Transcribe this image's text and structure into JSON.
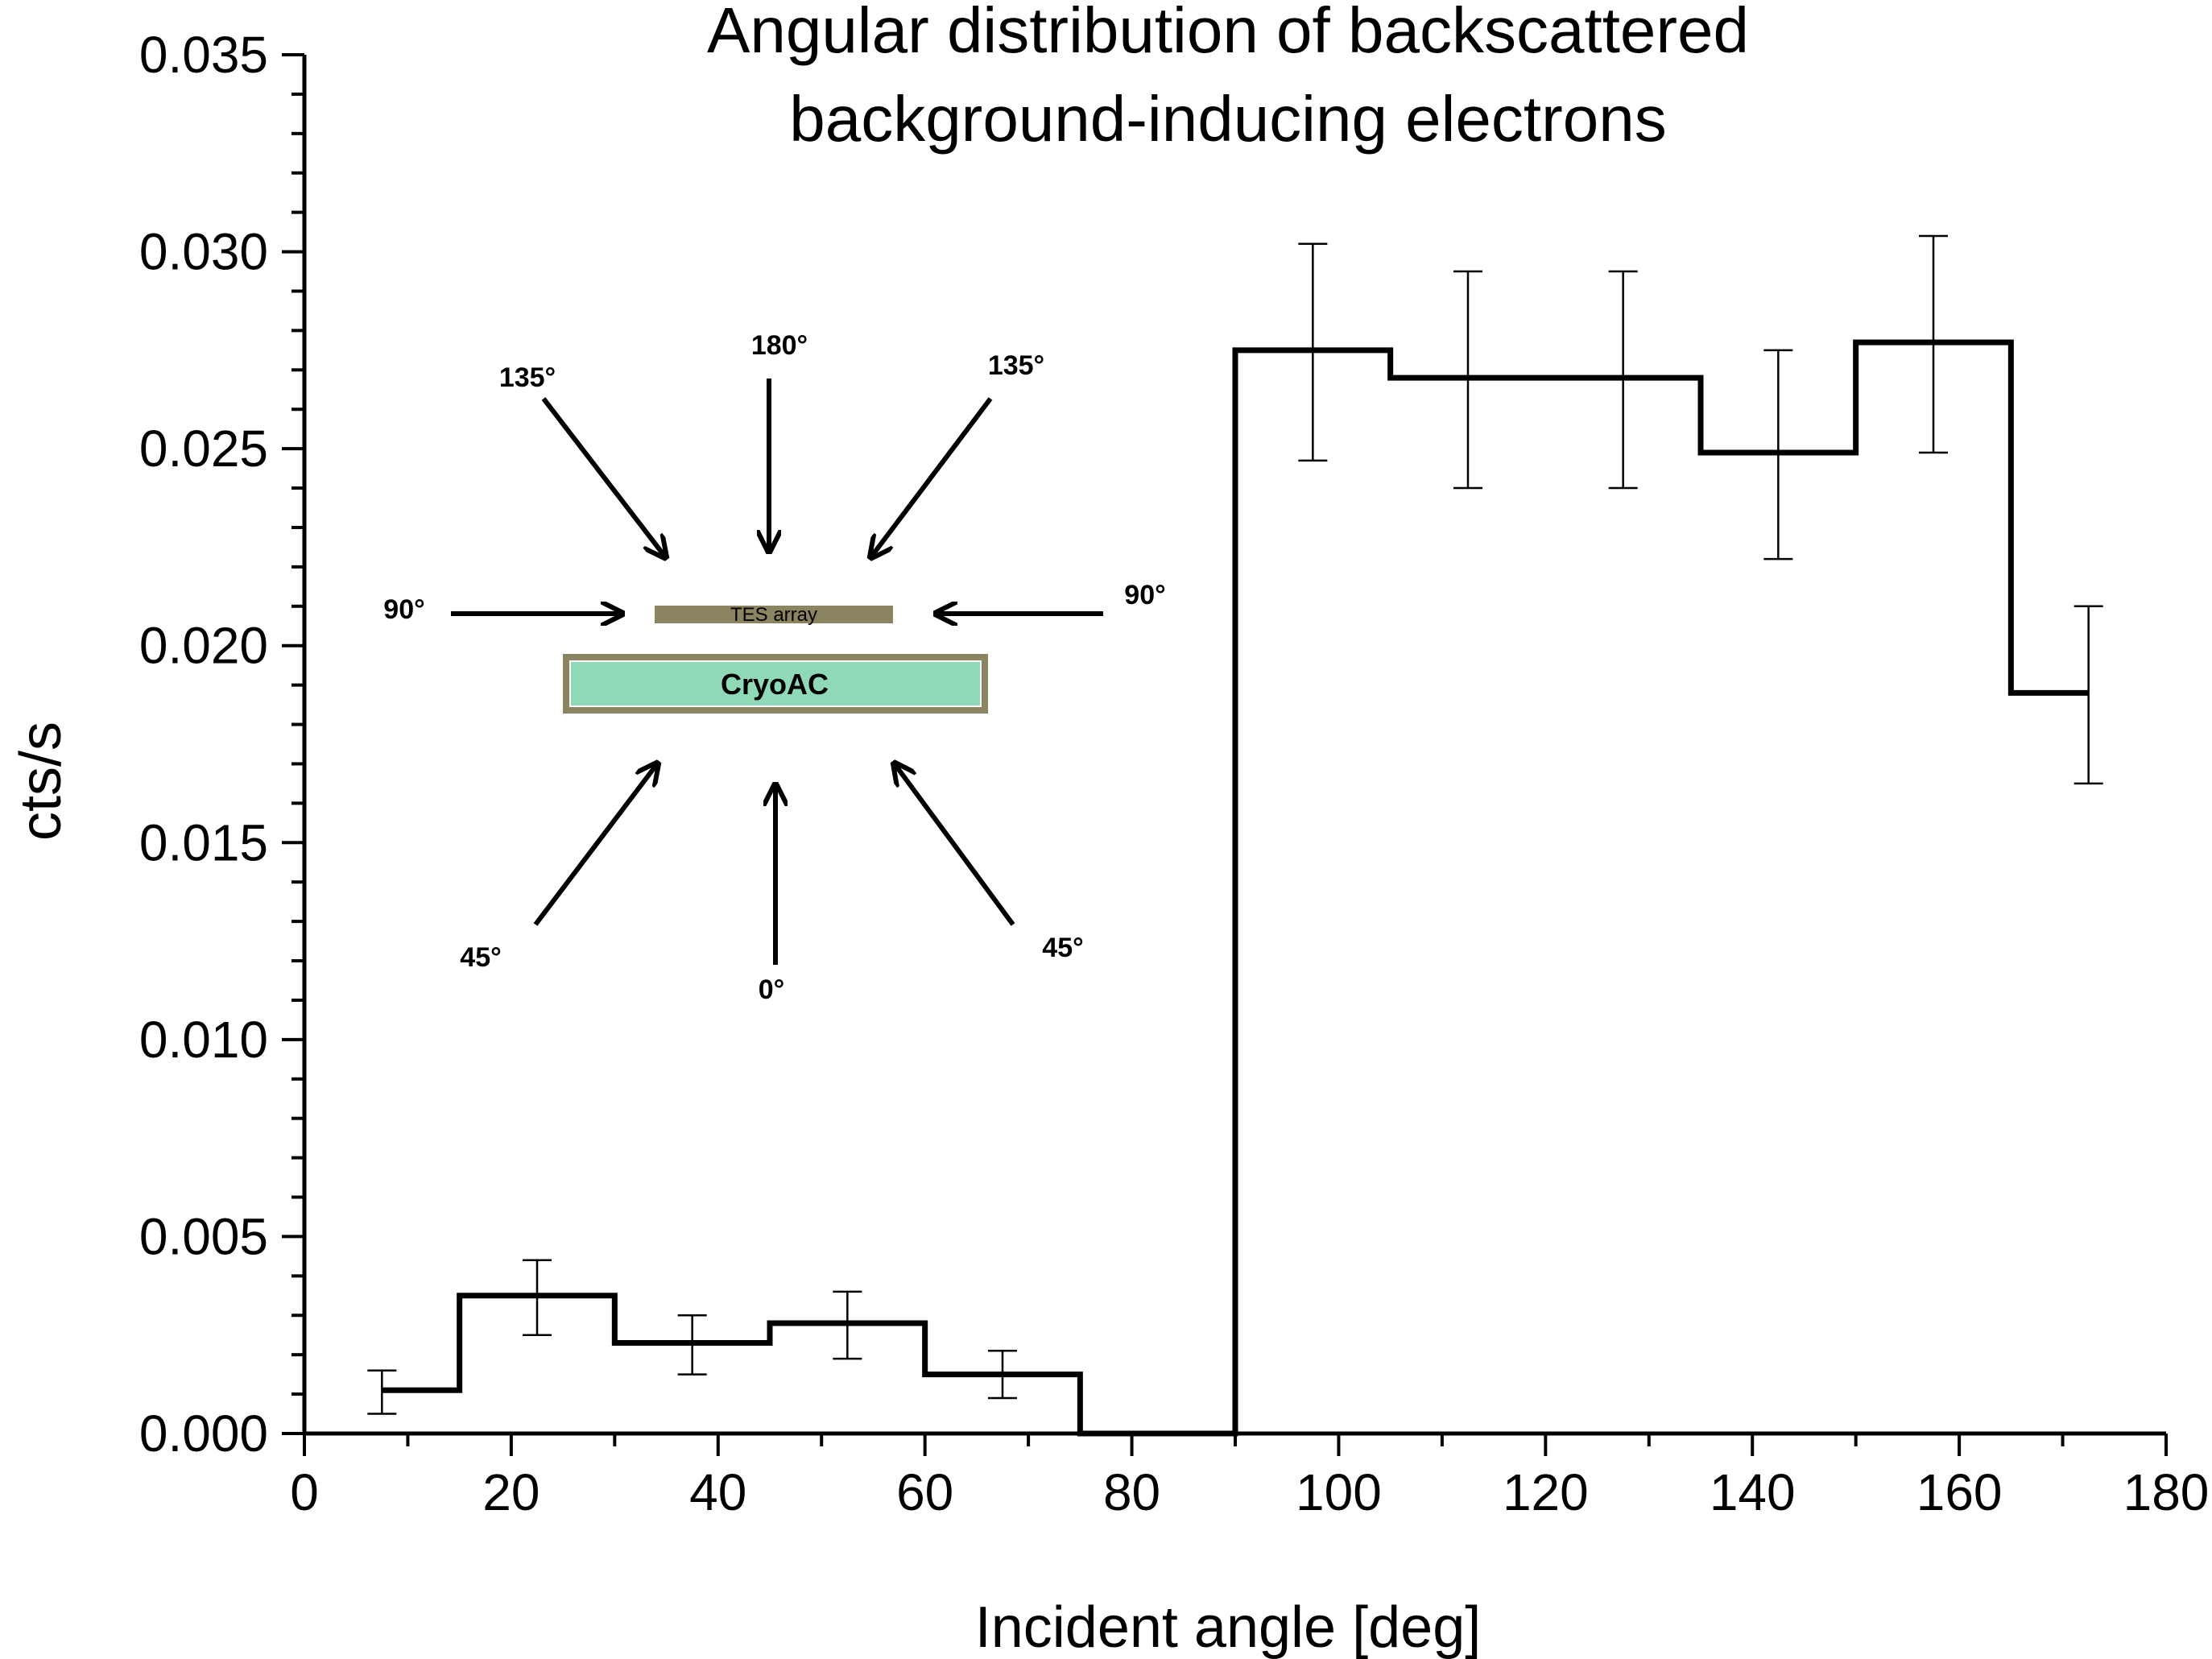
{
  "chart_data": {
    "type": "step",
    "title_lines": [
      "Angular distribution of backscattered",
      "background-inducing electrons"
    ],
    "xlabel": "Incident angle [deg]",
    "ylabel": "cts/s",
    "xlim": [
      0,
      180
    ],
    "ylim": [
      0,
      0.035
    ],
    "xticks": [
      "0",
      "20",
      "40",
      "60",
      "80",
      "100",
      "120",
      "140",
      "160",
      "180"
    ],
    "yticks": [
      "0.000",
      "0.005",
      "0.010",
      "0.015",
      "0.020",
      "0.025",
      "0.030",
      "0.035"
    ],
    "bin_width": 15,
    "bins": [
      {
        "x_start": 7.5,
        "x_end": 15,
        "y": 0.0011,
        "err_low": 0.0005,
        "err_high": 0.0016,
        "x_err": 7.5
      },
      {
        "x_start": 15,
        "x_end": 30,
        "y": 0.0035,
        "err_low": 0.0025,
        "err_high": 0.0044,
        "x_err": 22.5
      },
      {
        "x_start": 30,
        "x_end": 45,
        "y": 0.0023,
        "err_low": 0.0015,
        "err_high": 0.003,
        "x_err": 37.5
      },
      {
        "x_start": 45,
        "x_end": 60,
        "y": 0.0028,
        "err_low": 0.0019,
        "err_high": 0.0036,
        "x_err": 52.5
      },
      {
        "x_start": 60,
        "x_end": 75,
        "y": 0.0015,
        "err_low": 0.0009,
        "err_high": 0.0021,
        "x_err": 67.5
      },
      {
        "x_start": 75,
        "x_end": 90,
        "y": 0.0,
        "err_low": null,
        "err_high": null,
        "x_err": null
      },
      {
        "x_start": 90,
        "x_end": 105,
        "y": 0.0275,
        "err_low": 0.0247,
        "err_high": 0.0302,
        "x_err": 97.5
      },
      {
        "x_start": 105,
        "x_end": 120,
        "y": 0.0268,
        "err_low": 0.024,
        "err_high": 0.0295,
        "x_err": 112.5
      },
      {
        "x_start": 120,
        "x_end": 135,
        "y": 0.0268,
        "err_low": 0.024,
        "err_high": 0.0295,
        "x_err": 127.5
      },
      {
        "x_start": 135,
        "x_end": 150,
        "y": 0.0249,
        "err_low": 0.0222,
        "err_high": 0.0275,
        "x_err": 142.5
      },
      {
        "x_start": 150,
        "x_end": 165,
        "y": 0.0277,
        "err_low": 0.0249,
        "err_high": 0.0304,
        "x_err": 157.5
      },
      {
        "x_start": 165,
        "x_end": 172.5,
        "y": 0.0188,
        "err_low": 0.0165,
        "err_high": 0.021,
        "x_err": 172.5
      }
    ],
    "line_color": "#000000",
    "grid": false,
    "legend": "none"
  },
  "inset": {
    "labels": {
      "top": "180°",
      "upper_left": "135°",
      "upper_right": "135°",
      "left": "90°",
      "right": "90°",
      "lower_left": "45°",
      "lower_right": "45°",
      "bottom": "0°"
    },
    "tes_label": "TES array",
    "cryo_label": "CryoAC",
    "colors": {
      "cryo_fill": "#8fd9b6",
      "frame": "#8a8560",
      "tes_fill": "#8a8560",
      "arrow": "#000000"
    }
  }
}
